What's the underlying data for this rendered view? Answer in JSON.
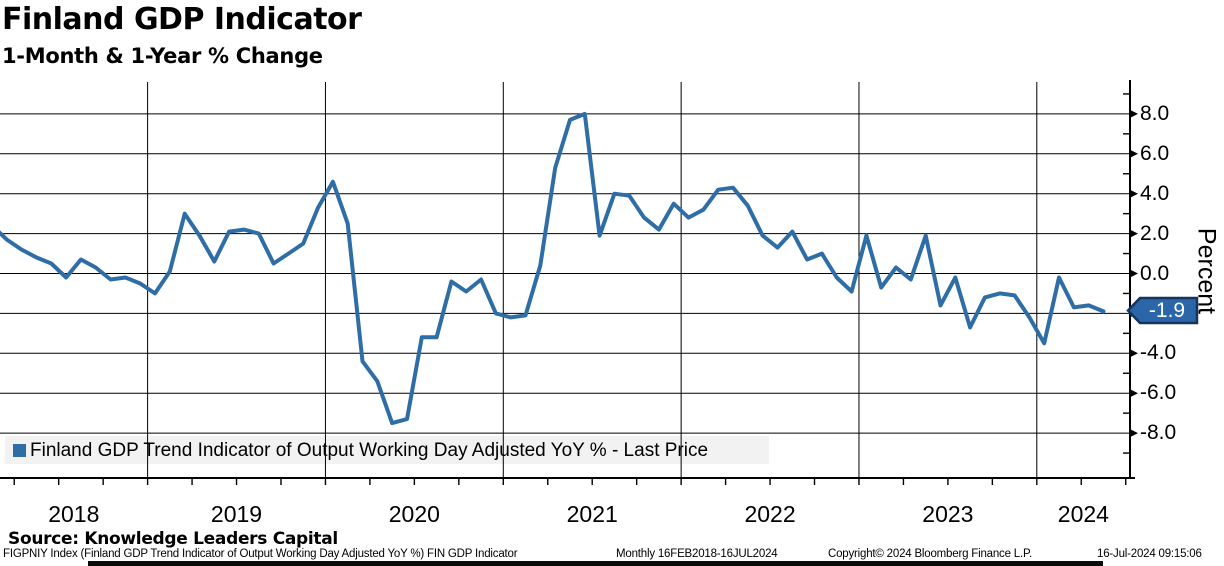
{
  "title": "Finland GDP Indicator",
  "subtitle": "1-Month & 1-Year % Change",
  "source_line": "Source: Knowledge Leaders Capital",
  "footer": {
    "security_info": "FIGPNIY Index (Finland GDP Trend Indicator of Output Working Day Adjusted YoY %) FIN GDP Indicator",
    "periodicity": "Monthly 16FEB2018-16JUL2024",
    "copyright": "Copyright© 2024 Bloomberg Finance L.P.",
    "timestamp": "16-Jul-2024 09:15:06"
  },
  "legend": {
    "label": "Finland GDP Trend Indicator of Output Working Day Adjusted YoY % - Last Price"
  },
  "last_price_tag": "-1.9",
  "colors": {
    "line": "#2e6da6",
    "tag_fill": "#2b66a8",
    "tag_border": "#16355e",
    "legend_bg": "#f2f2f2",
    "grid": "#000000"
  },
  "chart_data": {
    "type": "line",
    "title": "Finland GDP Indicator - 1-Month & 1-Year % Change",
    "series_name": "Finland GDP Trend Indicator of Output Working Day Adjusted YoY % - Last Price",
    "frequency": "monthly",
    "start_month": "2018-02",
    "end_month": "2024-05",
    "ylabel": "Percent",
    "ylim": [
      -9.6,
      9.6
    ],
    "grid": true,
    "legend_position": "bottom-left",
    "last_value": -1.9,
    "x_year_labels": [
      "2018",
      "2019",
      "2020",
      "2021",
      "2022",
      "2023",
      "2024"
    ],
    "y_ticks": [
      {
        "v": 8,
        "label": "8.0"
      },
      {
        "v": 6,
        "label": "6.0"
      },
      {
        "v": 4,
        "label": "4.0"
      },
      {
        "v": 2,
        "label": "2.0"
      },
      {
        "v": 0,
        "label": "0.0"
      },
      {
        "v": -2,
        "label": "-2.0"
      },
      {
        "v": -4,
        "label": "-4.0"
      },
      {
        "v": -6,
        "label": "-6.0"
      },
      {
        "v": -8,
        "label": "-8.0"
      }
    ],
    "y_minor_ticks": [
      9,
      7,
      5,
      3,
      1,
      -1,
      -3,
      -5,
      -7,
      -9
    ],
    "values": [
      2.4,
      1.7,
      1.2,
      0.8,
      0.5,
      -0.2,
      0.7,
      0.3,
      -0.3,
      -0.2,
      -0.5,
      -1.0,
      0.1,
      3.0,
      1.9,
      0.6,
      2.1,
      2.2,
      2.0,
      0.5,
      1.0,
      1.5,
      3.3,
      4.6,
      2.5,
      -4.4,
      -5.4,
      -7.5,
      -7.3,
      -3.2,
      -3.2,
      -0.4,
      -0.9,
      -0.3,
      -2.0,
      -2.2,
      -2.1,
      0.4,
      5.3,
      7.7,
      8.0,
      1.9,
      4.0,
      3.9,
      2.8,
      2.2,
      3.5,
      2.8,
      3.2,
      4.2,
      4.3,
      3.4,
      1.9,
      1.3,
      2.1,
      0.7,
      1.0,
      -0.2,
      -0.9,
      1.9,
      -0.7,
      0.3,
      -0.3,
      1.9,
      -1.6,
      -0.2,
      -2.7,
      -1.2,
      -1.0,
      -1.1,
      -2.2,
      -3.5,
      -0.2,
      -1.7,
      -1.6,
      -1.9
    ]
  }
}
